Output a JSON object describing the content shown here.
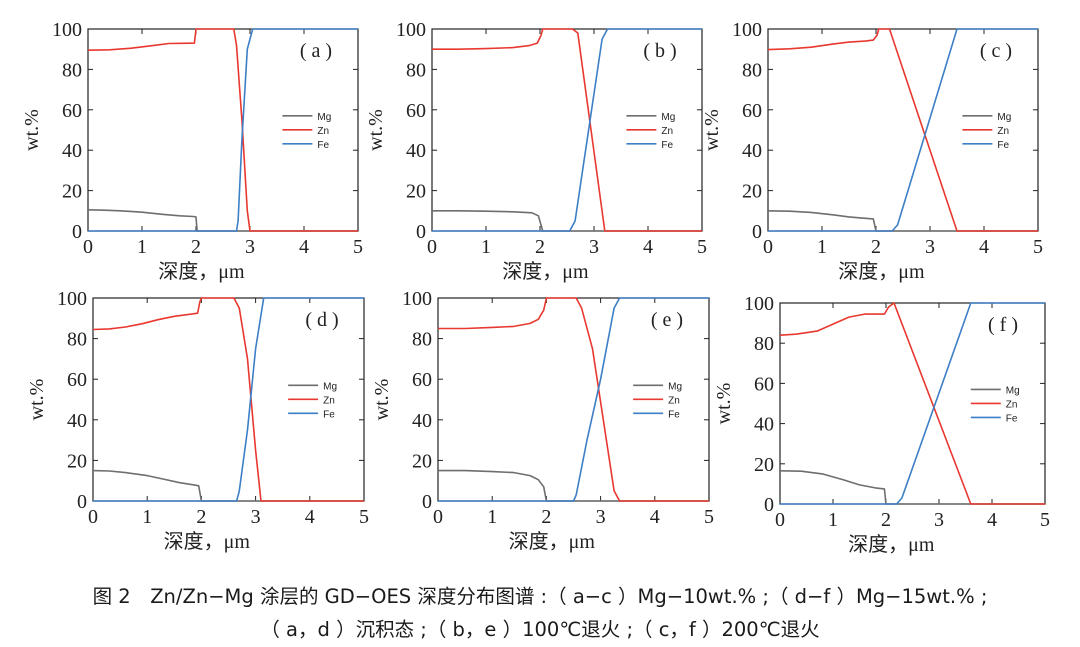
{
  "figure": {
    "caption_line1": "图 2　Zn/Zn−Mg 涂层的 GD−OES 深度分布图谱 :（ a−c ）Mg−10wt.% ;（ d−f ）Mg−15wt.% ;",
    "caption_line2": "（ a，d ）沉积态 ;（ b，e ）100℃退火 ;（ c，f ）200℃退火"
  },
  "colors": {
    "Mg": "#6e6e6e",
    "Zn": "#e8382f",
    "Fe": "#3c7fc6"
  },
  "chart_data": [
    {
      "type": "line",
      "panel_label": "( a )",
      "xlabel": "深度，μm",
      "ylabel": "wt.%",
      "xlim": [
        0,
        5
      ],
      "ylim": [
        0,
        100
      ],
      "xticks": [
        "0",
        "1",
        "2",
        "3",
        "4",
        "5"
      ],
      "yticks": [
        "0",
        "20",
        "40",
        "60",
        "80",
        "100"
      ],
      "legend": [
        "Mg",
        "Zn",
        "Fe"
      ],
      "series": [
        {
          "name": "Mg",
          "x": [
            0,
            0.3,
            0.6,
            1.0,
            1.4,
            1.7,
            1.95,
            2.0,
            2.02,
            5
          ],
          "y": [
            10.5,
            10.3,
            10,
            9.3,
            8.2,
            7.5,
            7.2,
            7,
            0,
            0
          ]
        },
        {
          "name": "Zn",
          "x": [
            0,
            0.4,
            0.8,
            1.2,
            1.5,
            1.75,
            1.97,
            2.0,
            2.7,
            2.75,
            2.85,
            2.95,
            3.0,
            5
          ],
          "y": [
            89.5,
            89.7,
            90.5,
            91.8,
            92.8,
            92.9,
            93,
            100,
            100,
            92,
            55,
            10,
            0,
            0
          ]
        },
        {
          "name": "Fe",
          "x": [
            0,
            2.75,
            2.78,
            2.85,
            2.95,
            3.05,
            5
          ],
          "y": [
            0,
            0,
            5,
            45,
            90,
            100,
            100
          ]
        }
      ]
    },
    {
      "type": "line",
      "panel_label": "( b )",
      "xlabel": "深度，μm",
      "ylabel": "wt.%",
      "xlim": [
        0,
        5
      ],
      "ylim": [
        0,
        100
      ],
      "xticks": [
        "0",
        "1",
        "2",
        "3",
        "4",
        "5"
      ],
      "yticks": [
        "0",
        "20",
        "40",
        "60",
        "80",
        "100"
      ],
      "legend": [
        "Mg",
        "Zn",
        "Fe"
      ],
      "series": [
        {
          "name": "Mg",
          "x": [
            0,
            0.5,
            1.0,
            1.5,
            1.85,
            1.97,
            2.03,
            2.05,
            5
          ],
          "y": [
            10,
            10,
            9.8,
            9.5,
            9,
            7.5,
            2,
            0,
            0
          ]
        },
        {
          "name": "Zn",
          "x": [
            0,
            0.5,
            1.0,
            1.5,
            1.8,
            1.95,
            2.02,
            2.05,
            2.6,
            2.7,
            3.2,
            5
          ],
          "y": [
            90,
            90,
            90.3,
            90.8,
            91.8,
            93,
            97,
            100,
            100,
            98,
            0,
            0
          ]
        },
        {
          "name": "Fe",
          "x": [
            0,
            2.55,
            2.65,
            2.9,
            3.15,
            3.25,
            5
          ],
          "y": [
            0,
            0,
            5,
            50,
            95,
            100,
            100
          ]
        }
      ]
    },
    {
      "type": "line",
      "panel_label": "( c )",
      "xlabel": "深度，μm",
      "ylabel": "wt.%",
      "xlim": [
        0,
        5
      ],
      "ylim": [
        0,
        100
      ],
      "xticks": [
        "0",
        "1",
        "2",
        "3",
        "4",
        "5"
      ],
      "yticks": [
        "0",
        "20",
        "40",
        "60",
        "80",
        "100"
      ],
      "legend": [
        "Mg",
        "Zn",
        "Fe"
      ],
      "series": [
        {
          "name": "Mg",
          "x": [
            0,
            0.4,
            0.8,
            1.2,
            1.5,
            1.8,
            1.95,
            2.0,
            5
          ],
          "y": [
            10,
            9.8,
            9.2,
            8,
            7,
            6.3,
            6,
            0,
            0
          ]
        },
        {
          "name": "Zn",
          "x": [
            0,
            0.4,
            0.8,
            1.2,
            1.5,
            1.8,
            1.95,
            2.02,
            2.05,
            2.25,
            3.5,
            5
          ],
          "y": [
            89.8,
            90.2,
            91,
            92.5,
            93.5,
            94,
            94.5,
            97,
            100,
            100,
            0,
            0
          ]
        },
        {
          "name": "Fe",
          "x": [
            0,
            2.3,
            2.4,
            3.5,
            5
          ],
          "y": [
            0,
            0,
            3,
            100,
            100
          ]
        }
      ]
    },
    {
      "type": "line",
      "panel_label": "( d )",
      "xlabel": "深度，μm",
      "ylabel": "wt.%",
      "xlim": [
        0,
        5
      ],
      "ylim": [
        0,
        100
      ],
      "xticks": [
        "0",
        "1",
        "2",
        "3",
        "4",
        "5"
      ],
      "yticks": [
        "0",
        "20",
        "40",
        "60",
        "80",
        "100"
      ],
      "legend": [
        "Mg",
        "Zn",
        "Fe"
      ],
      "series": [
        {
          "name": "Mg",
          "x": [
            0,
            0.3,
            0.6,
            1.0,
            1.3,
            1.6,
            1.85,
            1.95,
            2.0,
            5
          ],
          "y": [
            15,
            14.8,
            14,
            12.5,
            10.8,
            9,
            8,
            7.5,
            0,
            0
          ]
        },
        {
          "name": "Zn",
          "x": [
            0,
            0.3,
            0.6,
            0.9,
            1.2,
            1.5,
            1.8,
            1.93,
            1.97,
            2.0,
            2.6,
            2.7,
            2.85,
            3.0,
            3.1,
            5
          ],
          "y": [
            84.5,
            84.8,
            85.7,
            87.3,
            89.3,
            91,
            92,
            92.5,
            98,
            100,
            100,
            95,
            70,
            25,
            0,
            0
          ]
        },
        {
          "name": "Fe",
          "x": [
            0,
            2.65,
            2.7,
            2.85,
            3.0,
            3.15,
            5
          ],
          "y": [
            0,
            0,
            5,
            35,
            75,
            100,
            100
          ]
        }
      ]
    },
    {
      "type": "line",
      "panel_label": "( e )",
      "xlabel": "深度，μm",
      "ylabel": "wt.%",
      "xlim": [
        0,
        5
      ],
      "ylim": [
        0,
        100
      ],
      "xticks": [
        "0",
        "1",
        "2",
        "3",
        "4",
        "5"
      ],
      "yticks": [
        "0",
        "20",
        "40",
        "60",
        "80",
        "100"
      ],
      "legend": [
        "Mg",
        "Zn",
        "Fe"
      ],
      "series": [
        {
          "name": "Mg",
          "x": [
            0,
            0.5,
            1.0,
            1.4,
            1.7,
            1.85,
            1.95,
            2.0,
            5
          ],
          "y": [
            15,
            15,
            14.5,
            14,
            12.5,
            10.5,
            7,
            0,
            0
          ]
        },
        {
          "name": "Zn",
          "x": [
            0,
            0.5,
            1.0,
            1.4,
            1.7,
            1.85,
            1.95,
            2.0,
            2.55,
            2.65,
            2.85,
            3.05,
            3.25,
            3.35,
            5
          ],
          "y": [
            85,
            85,
            85.5,
            86,
            87.5,
            89.5,
            94,
            100,
            100,
            95,
            75,
            40,
            5,
            0,
            0
          ]
        },
        {
          "name": "Fe",
          "x": [
            0,
            2.5,
            2.55,
            2.75,
            3.0,
            3.25,
            3.35,
            5
          ],
          "y": [
            0,
            0,
            3,
            30,
            60,
            95,
            100,
            100
          ]
        }
      ]
    },
    {
      "type": "line",
      "panel_label": "( f )",
      "xlabel": "深度，μm",
      "ylabel": "wt.%",
      "xlim": [
        0,
        5
      ],
      "ylim": [
        0,
        100
      ],
      "xticks": [
        "0",
        "1",
        "2",
        "3",
        "4",
        "5"
      ],
      "yticks": [
        "0",
        "20",
        "40",
        "60",
        "80",
        "100"
      ],
      "legend": [
        "Mg",
        "Zn",
        "Fe"
      ],
      "series": [
        {
          "name": "Mg",
          "x": [
            0,
            0.4,
            0.8,
            1.2,
            1.5,
            1.8,
            1.97,
            2.0,
            5
          ],
          "y": [
            16.5,
            16.3,
            15,
            12,
            9.5,
            8,
            7.5,
            0,
            0
          ]
        },
        {
          "name": "Zn",
          "x": [
            0,
            0.3,
            0.7,
            1.0,
            1.3,
            1.6,
            1.8,
            1.97,
            2.05,
            2.15,
            3.6,
            5
          ],
          "y": [
            84,
            84.5,
            86,
            89.5,
            93,
            94.5,
            94.5,
            94.5,
            98,
            100,
            0,
            0
          ]
        },
        {
          "name": "Fe",
          "x": [
            0,
            2.2,
            2.3,
            3.6,
            5
          ],
          "y": [
            0,
            0,
            3,
            100,
            100
          ]
        }
      ]
    }
  ]
}
